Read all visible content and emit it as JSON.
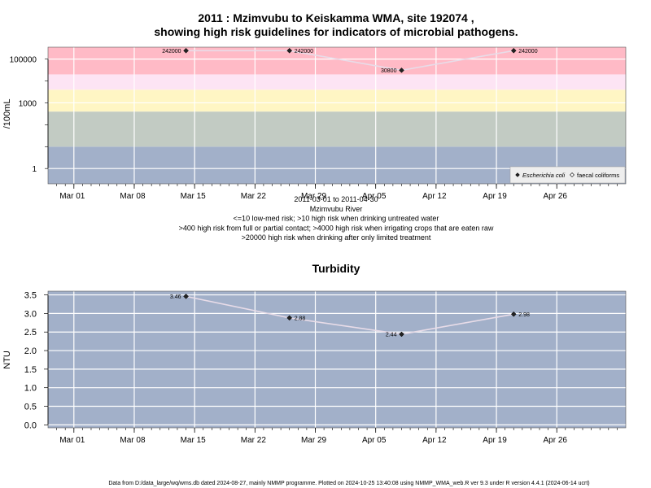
{
  "title_line1": "2011 : Mzimvubu to Keiskamma WMA, site 192074 ,",
  "title_line2": "showing high risk guidelines for indicators of microbial pathogens.",
  "footer": "Data from D:/data_large/wq/wms.db dated 2024-08-27, mainly NMMP programme. Plotted on 2024-10-25 13:40:08 using NMMP_WMA_web.R ver 9.3 under R version 4.4.1 (2024-06-14 ucrt)",
  "colors": {
    "risk_bands": [
      "#a2b0c9",
      "#c2cbc3",
      "#fff6c4",
      "#fde4f4",
      "#ffbac6"
    ],
    "panel_bg": "#a2b0c9",
    "line": "#e8dce8",
    "point": "#222222"
  },
  "chart_data": [
    {
      "type": "line",
      "ylabel": "/100mL",
      "y_scale": "log",
      "ylim": [
        0.2,
        350000
      ],
      "xlim": [
        "2011-02-26",
        "2011-05-04"
      ],
      "x_ticks": [
        "Mar 01",
        "Mar 08",
        "Mar 15",
        "Mar 22",
        "Mar 29",
        "Apr 05",
        "Apr 12",
        "Apr 19",
        "Apr 26"
      ],
      "y_ticks": [
        "1",
        "1000",
        "100000"
      ],
      "grid": true,
      "risk_band_limits": [
        10,
        400,
        4000,
        20000
      ],
      "x_caption": [
        "2011-03-01 to 2011-04-30",
        "Mzimvubu River",
        "<=10 low-med risk; >10 high risk when drinking untreated water",
        ">400 high risk from full or partial contact; >4000 high risk when irrigating crops that are eaten raw",
        ">20000 high risk when drinking after only limited treatment"
      ],
      "legend_position": "bottom-right",
      "legend": [
        {
          "label": "Escherichia coli",
          "marker": "filled-diamond"
        },
        {
          "label": "faecal coliforms",
          "marker": "open-diamond"
        }
      ],
      "series": [
        {
          "name": "Escherichia coli",
          "x": [
            "2011-03-14",
            "2011-03-26",
            "2011-04-08",
            "2011-04-21"
          ],
          "values": [
            242000,
            242000,
            30800,
            242000
          ],
          "labels": [
            "242000",
            "242000",
            "30800",
            "242000"
          ]
        }
      ]
    },
    {
      "type": "line",
      "title": "Turbidity",
      "ylabel": "NTU",
      "ylim": [
        -0.08,
        3.6
      ],
      "xlim": [
        "2011-02-26",
        "2011-05-04"
      ],
      "x_ticks": [
        "Mar 01",
        "Mar 08",
        "Mar 15",
        "Mar 22",
        "Mar 29",
        "Apr 05",
        "Apr 12",
        "Apr 19",
        "Apr 26"
      ],
      "y_ticks": [
        "0.0",
        "0.5",
        "1.0",
        "1.5",
        "2.0",
        "2.5",
        "3.0",
        "3.5"
      ],
      "grid": true,
      "series": [
        {
          "x": [
            "2011-03-14",
            "2011-03-26",
            "2011-04-08",
            "2011-04-21"
          ],
          "values": [
            3.46,
            2.88,
            2.44,
            2.98
          ],
          "labels": [
            "3.46",
            "2.88",
            "2.44",
            "2.98"
          ]
        }
      ]
    }
  ]
}
